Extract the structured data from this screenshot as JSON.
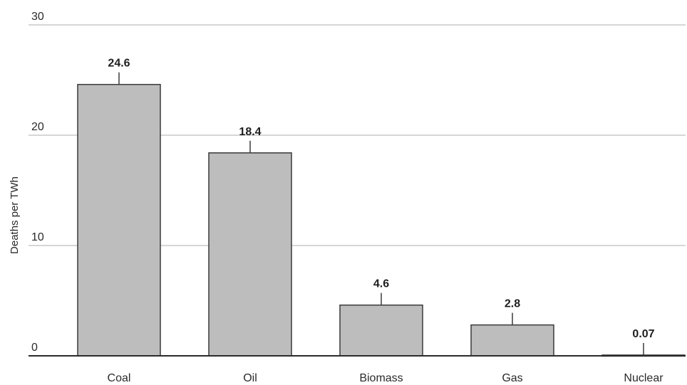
{
  "chart_data": {
    "type": "bar",
    "title": "",
    "xlabel": "",
    "ylabel": "Deaths per TWh",
    "categories": [
      "Coal",
      "Oil",
      "Biomass",
      "Gas",
      "Nuclear"
    ],
    "values": [
      24.6,
      18.4,
      4.6,
      2.8,
      0.07
    ],
    "value_labels": [
      "24.6",
      "18.4",
      "4.6",
      "2.8",
      "0.07"
    ],
    "ylim": [
      0,
      30
    ],
    "yticks": [
      0,
      10,
      20,
      30
    ],
    "ytick_labels": [
      "0",
      "10",
      "20",
      "30"
    ],
    "grid": true,
    "legend": "none",
    "colors": {
      "bar_fill": "#bdbdbd",
      "bar_stroke": "#3a3a3a",
      "grid": "#c9c9c9"
    }
  }
}
